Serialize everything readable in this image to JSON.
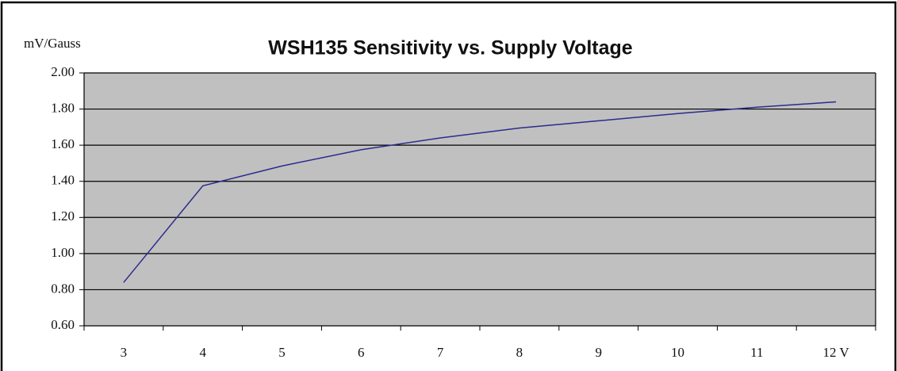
{
  "chart_data": {
    "type": "line",
    "title": "WSH135 Sensitivity vs. Supply Voltage",
    "y_label": "mV/Gauss",
    "categories": [
      "3",
      "4",
      "5",
      "6",
      "7",
      "8",
      "9",
      "10",
      "11",
      "12 V"
    ],
    "values": [
      0.84,
      1.375,
      1.485,
      1.575,
      1.64,
      1.695,
      1.735,
      1.775,
      1.81,
      1.84
    ],
    "color": "#2b2b8f",
    "ylim": [
      0.6,
      2.0
    ],
    "yticks": [
      {
        "value": 0.6,
        "label": "0.60"
      },
      {
        "value": 0.8,
        "label": "0.80"
      },
      {
        "value": 1.0,
        "label": "1.00"
      },
      {
        "value": 1.2,
        "label": "1.20"
      },
      {
        "value": 1.4,
        "label": "1.40"
      },
      {
        "value": 1.6,
        "label": "1.60"
      },
      {
        "value": 1.8,
        "label": "1.80"
      },
      {
        "value": 2.0,
        "label": "2.00"
      }
    ],
    "grid": true
  }
}
